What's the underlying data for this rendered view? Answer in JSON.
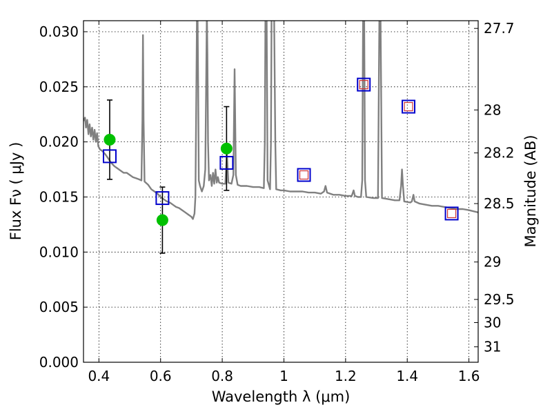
{
  "chart_data": {
    "type": "scatter",
    "xlabel": "Wavelength  λ (μm)",
    "ylabel": "Flux  Fν  ( μJy )",
    "ylabel_right": "Magnitude (AB)",
    "xlim": [
      0.35,
      1.63
    ],
    "ylim": [
      0.0,
      0.031
    ],
    "grid": true,
    "x_ticks": [
      {
        "value": 0.4,
        "label": "0.4"
      },
      {
        "value": 0.6,
        "label": "0.6"
      },
      {
        "value": 0.8,
        "label": "0.8"
      },
      {
        "value": 1.0,
        "label": "1"
      },
      {
        "value": 1.2,
        "label": "1.2"
      },
      {
        "value": 1.4,
        "label": "1.4"
      },
      {
        "value": 1.6,
        "label": "1.6"
      }
    ],
    "y_ticks": [
      {
        "value": 0.0,
        "label": "0.000"
      },
      {
        "value": 0.005,
        "label": "0.005"
      },
      {
        "value": 0.01,
        "label": "0.010"
      },
      {
        "value": 0.015,
        "label": "0.015"
      },
      {
        "value": 0.02,
        "label": "0.020"
      },
      {
        "value": 0.025,
        "label": "0.025"
      },
      {
        "value": 0.03,
        "label": "0.030"
      }
    ],
    "right_ticks": [
      {
        "label": "27.7",
        "flux": 0.0303
      },
      {
        "label": "28",
        "flux": 0.0229
      },
      {
        "label": "28.2",
        "flux": 0.019
      },
      {
        "label": "28.5",
        "flux": 0.0144
      },
      {
        "label": "29",
        "flux": 0.0091
      },
      {
        "label": "29.5",
        "flux": 0.0057
      },
      {
        "label": "30",
        "flux": 0.0036
      },
      {
        "label": "31",
        "flux": 0.0014
      }
    ],
    "series": [
      {
        "kind": "sed_model",
        "color": "#808080",
        "points": [
          [
            0.35,
            0.0219
          ],
          [
            0.355,
            0.0222
          ],
          [
            0.358,
            0.0213
          ],
          [
            0.362,
            0.022
          ],
          [
            0.366,
            0.0207
          ],
          [
            0.37,
            0.0216
          ],
          [
            0.374,
            0.0205
          ],
          [
            0.378,
            0.0213
          ],
          [
            0.382,
            0.0202
          ],
          [
            0.386,
            0.0211
          ],
          [
            0.39,
            0.02
          ],
          [
            0.394,
            0.0208
          ],
          [
            0.398,
            0.0196
          ],
          [
            0.404,
            0.0193
          ],
          [
            0.41,
            0.0192
          ],
          [
            0.42,
            0.0189
          ],
          [
            0.43,
            0.0185
          ],
          [
            0.44,
            0.0181
          ],
          [
            0.45,
            0.0178
          ],
          [
            0.46,
            0.0176
          ],
          [
            0.47,
            0.0174
          ],
          [
            0.48,
            0.0172
          ],
          [
            0.49,
            0.0172
          ],
          [
            0.5,
            0.017
          ],
          [
            0.51,
            0.0168
          ],
          [
            0.52,
            0.0167
          ],
          [
            0.53,
            0.0166
          ],
          [
            0.538,
            0.0165
          ],
          [
            0.541,
            0.022
          ],
          [
            0.543,
            0.0297
          ],
          [
            0.545,
            0.022
          ],
          [
            0.548,
            0.0164
          ],
          [
            0.56,
            0.0161
          ],
          [
            0.57,
            0.0157
          ],
          [
            0.58,
            0.0155
          ],
          [
            0.59,
            0.0153
          ],
          [
            0.6,
            0.015
          ],
          [
            0.61,
            0.0148
          ],
          [
            0.62,
            0.0146
          ],
          [
            0.63,
            0.0145
          ],
          [
            0.64,
            0.0143
          ],
          [
            0.65,
            0.0141
          ],
          [
            0.66,
            0.014
          ],
          [
            0.67,
            0.0138
          ],
          [
            0.68,
            0.0136
          ],
          [
            0.69,
            0.0134
          ],
          [
            0.7,
            0.0132
          ],
          [
            0.705,
            0.013
          ],
          [
            0.71,
            0.0135
          ],
          [
            0.713,
            0.015
          ],
          [
            0.716,
            0.025
          ],
          [
            0.718,
            0.032
          ],
          [
            0.72,
            0.032
          ],
          [
            0.722,
            0.025
          ],
          [
            0.724,
            0.0165
          ],
          [
            0.728,
            0.016
          ],
          [
            0.734,
            0.0155
          ],
          [
            0.74,
            0.016
          ],
          [
            0.745,
            0.0175
          ],
          [
            0.748,
            0.026
          ],
          [
            0.75,
            0.032
          ],
          [
            0.752,
            0.028
          ],
          [
            0.754,
            0.02
          ],
          [
            0.757,
            0.0165
          ],
          [
            0.762,
            0.017
          ],
          [
            0.766,
            0.016
          ],
          [
            0.77,
            0.0172
          ],
          [
            0.774,
            0.0162
          ],
          [
            0.778,
            0.0175
          ],
          [
            0.782,
            0.0163
          ],
          [
            0.786,
            0.0168
          ],
          [
            0.79,
            0.0163
          ],
          [
            0.8,
            0.0162
          ],
          [
            0.81,
            0.0162
          ],
          [
            0.815,
            0.019
          ],
          [
            0.82,
            0.0163
          ],
          [
            0.83,
            0.0162
          ],
          [
            0.836,
            0.017
          ],
          [
            0.84,
            0.0266
          ],
          [
            0.844,
            0.017
          ],
          [
            0.85,
            0.0161
          ],
          [
            0.86,
            0.016
          ],
          [
            0.88,
            0.016
          ],
          [
            0.9,
            0.0159
          ],
          [
            0.92,
            0.0159
          ],
          [
            0.935,
            0.0158
          ],
          [
            0.938,
            0.02
          ],
          [
            0.94,
            0.032
          ],
          [
            0.944,
            0.032
          ],
          [
            0.947,
            0.0165
          ],
          [
            0.955,
            0.0157
          ],
          [
            0.958,
            0.02
          ],
          [
            0.96,
            0.032
          ],
          [
            0.968,
            0.032
          ],
          [
            0.972,
            0.02
          ],
          [
            0.975,
            0.0157
          ],
          [
            0.99,
            0.0156
          ],
          [
            1.0,
            0.0156
          ],
          [
            1.02,
            0.0155
          ],
          [
            1.04,
            0.0155
          ],
          [
            1.06,
            0.0155
          ],
          [
            1.08,
            0.0154
          ],
          [
            1.1,
            0.0154
          ],
          [
            1.12,
            0.0153
          ],
          [
            1.13,
            0.0155
          ],
          [
            1.135,
            0.016
          ],
          [
            1.14,
            0.0154
          ],
          [
            1.16,
            0.0152
          ],
          [
            1.18,
            0.0152
          ],
          [
            1.2,
            0.0151
          ],
          [
            1.22,
            0.0151
          ],
          [
            1.226,
            0.0156
          ],
          [
            1.23,
            0.0151
          ],
          [
            1.24,
            0.015
          ],
          [
            1.25,
            0.015
          ],
          [
            1.254,
            0.0165
          ],
          [
            1.257,
            0.033
          ],
          [
            1.26,
            0.033
          ],
          [
            1.263,
            0.0165
          ],
          [
            1.267,
            0.015
          ],
          [
            1.29,
            0.0149
          ],
          [
            1.305,
            0.0149
          ],
          [
            1.31,
            0.033
          ],
          [
            1.313,
            0.033
          ],
          [
            1.318,
            0.0149
          ],
          [
            1.34,
            0.0148
          ],
          [
            1.36,
            0.0147
          ],
          [
            1.375,
            0.0147
          ],
          [
            1.38,
            0.016
          ],
          [
            1.383,
            0.0175
          ],
          [
            1.386,
            0.016
          ],
          [
            1.39,
            0.0146
          ],
          [
            1.41,
            0.0145
          ],
          [
            1.415,
            0.0146
          ],
          [
            1.42,
            0.0152
          ],
          [
            1.424,
            0.0146
          ],
          [
            1.44,
            0.0144
          ],
          [
            1.46,
            0.0143
          ],
          [
            1.48,
            0.0142
          ],
          [
            1.5,
            0.0142
          ],
          [
            1.52,
            0.0141
          ],
          [
            1.54,
            0.014
          ],
          [
            1.56,
            0.0139
          ],
          [
            1.58,
            0.0139
          ],
          [
            1.6,
            0.0138
          ],
          [
            1.63,
            0.0136
          ]
        ]
      },
      {
        "kind": "observed",
        "color": "#00c000",
        "points": [
          {
            "x": 0.435,
            "y": 0.0202,
            "err": 0.0036
          },
          {
            "x": 0.606,
            "y": 0.0129,
            "err": 0.003
          },
          {
            "x": 0.814,
            "y": 0.0194,
            "err": 0.0038
          }
        ]
      },
      {
        "kind": "model_bands",
        "color": "#0000cc",
        "inner_color": "#cc3333",
        "points": [
          {
            "x": 0.435,
            "y": 0.0187,
            "inner": false
          },
          {
            "x": 0.606,
            "y": 0.0149,
            "inner": false
          },
          {
            "x": 0.814,
            "y": 0.0181,
            "inner": false
          },
          {
            "x": 1.065,
            "y": 0.017,
            "inner": true
          },
          {
            "x": 1.259,
            "y": 0.0252,
            "inner": true
          },
          {
            "x": 1.404,
            "y": 0.0232,
            "inner": true
          },
          {
            "x": 1.544,
            "y": 0.0135,
            "inner": true
          }
        ]
      }
    ]
  }
}
